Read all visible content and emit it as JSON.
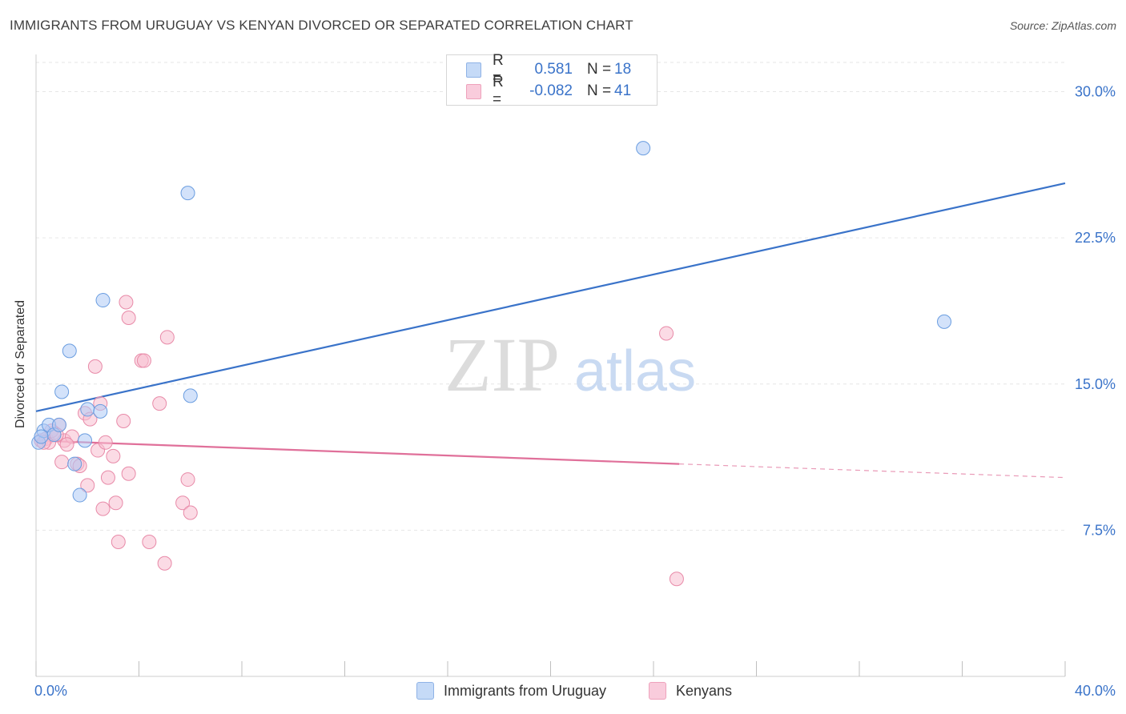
{
  "title": "IMMIGRANTS FROM URUGUAY VS KENYAN DIVORCED OR SEPARATED CORRELATION CHART",
  "source": "Source: ZipAtlas.com",
  "watermark": {
    "zip": "ZIP",
    "atlas": "atlas"
  },
  "legend": {
    "rows": [
      {
        "r_label": "R =",
        "r_value": "0.581",
        "n_label": "N =",
        "n_value": "18",
        "color": "#aecbf5"
      },
      {
        "r_label": "R =",
        "r_value": "-0.082",
        "n_label": "N =",
        "n_value": "41",
        "color": "#f7bdd0"
      }
    ]
  },
  "bottom_legend": [
    {
      "label": "Immigrants from Uruguay",
      "color": "#aecbf5"
    },
    {
      "label": "Kenyans",
      "color": "#f7bdd0"
    }
  ],
  "chart_data": {
    "type": "scatter",
    "xlabel": "",
    "ylabel": "Divorced or Separated",
    "xlim": [
      0,
      40
    ],
    "ylim": [
      0,
      31.5
    ],
    "x_tick_labels": [
      "0.0%",
      "40.0%"
    ],
    "y_ticks": [
      7.5,
      15.0,
      22.5,
      30.0
    ],
    "y_tick_labels": [
      "7.5%",
      "15.0%",
      "22.5%",
      "30.0%"
    ],
    "grid": true,
    "series": [
      {
        "name": "Immigrants from Uruguay",
        "color": "#6a9de0",
        "fill": "#aecbf5",
        "points": [
          [
            0.1,
            12.0
          ],
          [
            0.3,
            12.6
          ],
          [
            0.5,
            12.9
          ],
          [
            0.7,
            12.4
          ],
          [
            0.9,
            12.9
          ],
          [
            1.0,
            14.6
          ],
          [
            1.3,
            16.7
          ],
          [
            1.5,
            10.9
          ],
          [
            1.7,
            9.3
          ],
          [
            1.9,
            12.1
          ],
          [
            2.0,
            13.7
          ],
          [
            2.5,
            13.6
          ],
          [
            2.6,
            19.3
          ],
          [
            5.9,
            24.8
          ],
          [
            6.0,
            14.4
          ],
          [
            23.6,
            27.1
          ],
          [
            35.3,
            18.2
          ],
          [
            0.2,
            12.3
          ]
        ],
        "trend": {
          "x": [
            0,
            40
          ],
          "y": [
            13.6,
            25.3
          ],
          "style": "solid",
          "color": "#3a73c9"
        }
      },
      {
        "name": "Kenyans",
        "color": "#e88aa8",
        "fill": "#f7bdd0",
        "points": [
          [
            0.2,
            12.1
          ],
          [
            0.4,
            12.2
          ],
          [
            0.5,
            12.0
          ],
          [
            0.7,
            12.5
          ],
          [
            0.9,
            12.9
          ],
          [
            1.0,
            11.0
          ],
          [
            1.1,
            12.1
          ],
          [
            1.4,
            12.3
          ],
          [
            1.6,
            10.9
          ],
          [
            1.7,
            10.8
          ],
          [
            1.9,
            13.5
          ],
          [
            2.0,
            9.8
          ],
          [
            2.1,
            13.2
          ],
          [
            2.3,
            15.9
          ],
          [
            2.4,
            11.6
          ],
          [
            2.5,
            14.0
          ],
          [
            2.6,
            8.6
          ],
          [
            2.7,
            12.0
          ],
          [
            2.8,
            10.2
          ],
          [
            3.0,
            11.3
          ],
          [
            3.1,
            8.9
          ],
          [
            3.2,
            6.9
          ],
          [
            3.4,
            13.1
          ],
          [
            3.5,
            19.2
          ],
          [
            3.6,
            10.4
          ],
          [
            3.6,
            18.4
          ],
          [
            4.1,
            16.2
          ],
          [
            4.2,
            16.2
          ],
          [
            4.4,
            6.9
          ],
          [
            4.8,
            14.0
          ],
          [
            5.0,
            5.8
          ],
          [
            5.1,
            17.4
          ],
          [
            5.7,
            8.9
          ],
          [
            5.9,
            10.1
          ],
          [
            6.0,
            8.4
          ],
          [
            24.5,
            17.6
          ],
          [
            24.9,
            5.0
          ],
          [
            0.3,
            12.0
          ],
          [
            0.6,
            12.6
          ],
          [
            1.2,
            11.9
          ],
          [
            0.8,
            12.4
          ]
        ],
        "trend": {
          "x": [
            0,
            25.0
          ],
          "y": [
            12.1,
            10.9
          ],
          "style": "solid",
          "color": "#e0709a",
          "extension": {
            "x": [
              25.0,
              40
            ],
            "y": [
              10.9,
              10.2
            ],
            "style": "dashed"
          }
        }
      }
    ]
  }
}
